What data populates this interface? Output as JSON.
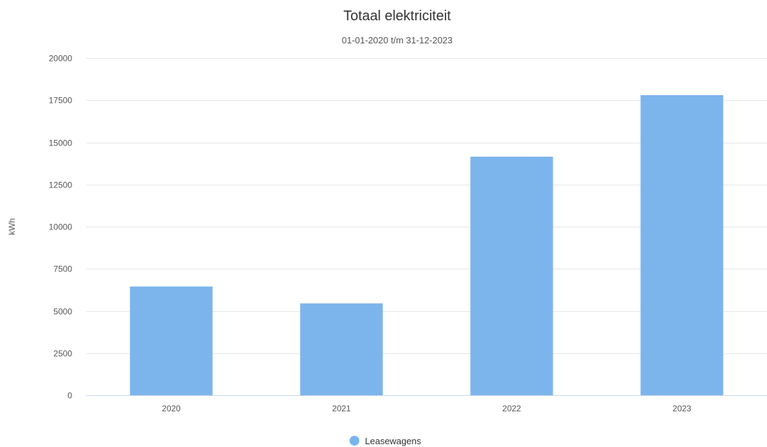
{
  "chart_data": {
    "type": "bar",
    "title": "Totaal elektriciteit",
    "subtitle": "01-01-2020 t/m 31-12-2023",
    "ylabel": "kWh",
    "xlabel": "",
    "categories": [
      "2020",
      "2021",
      "2022",
      "2023"
    ],
    "series": [
      {
        "name": "Leasewagens",
        "color": "#7cb5ec",
        "values": [
          6450,
          5450,
          14150,
          17800
        ]
      }
    ],
    "ylim": [
      0,
      20000
    ],
    "yticks": [
      0,
      2500,
      5000,
      7500,
      10000,
      12500,
      15000,
      17500,
      20000
    ],
    "grid": true,
    "legend_position": "bottom-center"
  }
}
